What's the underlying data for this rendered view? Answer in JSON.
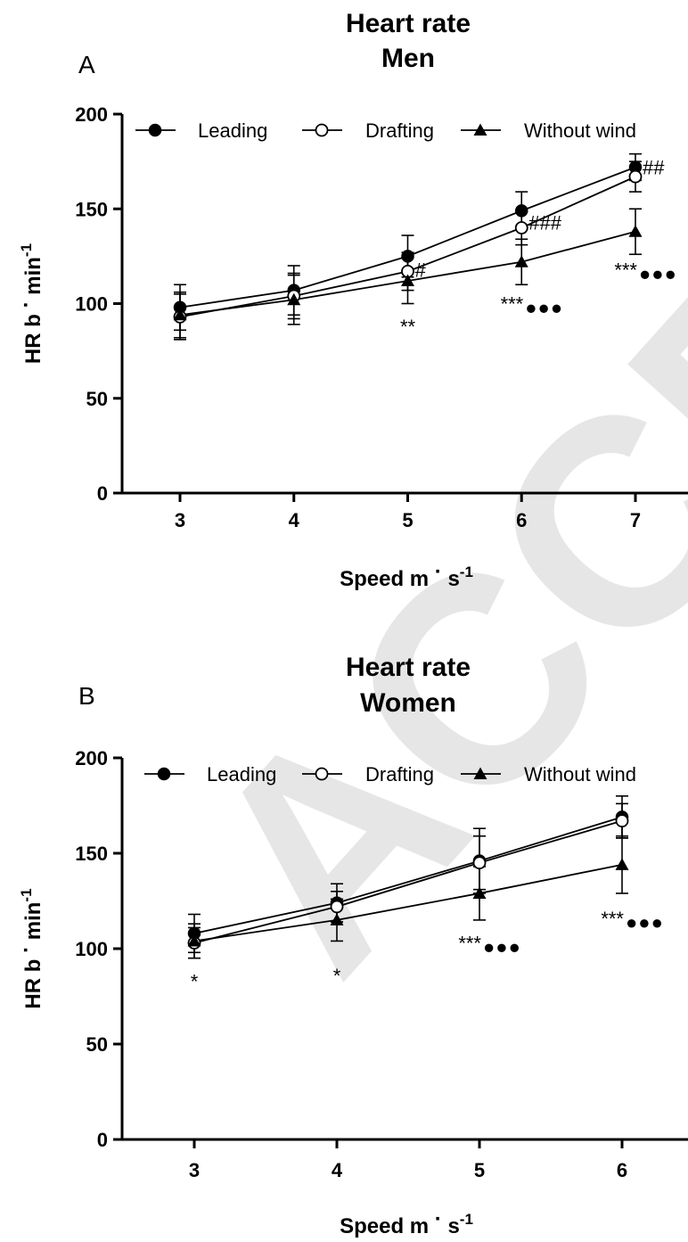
{
  "watermark": "ACCEPTED",
  "chart_data": [
    {
      "type": "line",
      "panel_label": "A",
      "title": "Heart rate",
      "subtitle": "Men",
      "xlabel": "Speed m",
      "xlabel_sup": "-1",
      "xlabel_mid": "s",
      "ylabel": "HR  b",
      "ylabel_mid": "min",
      "ylabel_sup": "-1",
      "x": [
        3,
        4,
        5,
        6,
        7
      ],
      "xticks": [
        "3",
        "4",
        "5",
        "6",
        "7"
      ],
      "ylim": [
        0,
        200
      ],
      "yticks": [
        "0",
        "50",
        "100",
        "150",
        "200"
      ],
      "legend_position": "top",
      "series": [
        {
          "name": "Leading",
          "marker": "filled-circle",
          "values": [
            98,
            107,
            125,
            149,
            172
          ],
          "err": [
            12,
            13,
            11,
            10,
            7
          ]
        },
        {
          "name": "Drafting",
          "marker": "open-circle",
          "values": [
            93,
            104,
            117,
            140,
            167
          ],
          "err": [
            12,
            12,
            10,
            9,
            8
          ]
        },
        {
          "name": "Without wind",
          "marker": "filled-triangle",
          "values": [
            94,
            102,
            112,
            122,
            138
          ],
          "err": [
            12,
            13,
            12,
            12,
            12
          ]
        }
      ],
      "annotations": [
        {
          "text": "**",
          "x": 5,
          "y": 88,
          "series": 2
        },
        {
          "text": "***",
          "dots": "●●●",
          "x": 6,
          "y": 100,
          "series": 2
        },
        {
          "text": "***",
          "dots": "●●●",
          "x": 7,
          "y": 118,
          "series": 2
        },
        {
          "text": "#",
          "x": 5,
          "y": 117,
          "series": 1
        },
        {
          "text": "###",
          "x": 6,
          "y": 142,
          "series": 1
        },
        {
          "text": "##",
          "x": 7,
          "y": 171,
          "series": 1
        }
      ]
    },
    {
      "type": "line",
      "panel_label": "B",
      "title": "Heart rate",
      "subtitle": "Women",
      "xlabel": "Speed m",
      "xlabel_sup": "-1",
      "xlabel_mid": "s",
      "ylabel": "HR  b",
      "ylabel_mid": "min",
      "ylabel_sup": "-1",
      "x": [
        3,
        4,
        5,
        6
      ],
      "xticks": [
        "3",
        "4",
        "5",
        "6"
      ],
      "ylim": [
        0,
        200
      ],
      "yticks": [
        "0",
        "50",
        "100",
        "150",
        "200"
      ],
      "legend_position": "top",
      "series": [
        {
          "name": "Leading",
          "marker": "filled-circle",
          "values": [
            108,
            124,
            146,
            169
          ],
          "err": [
            10,
            10,
            17,
            11
          ]
        },
        {
          "name": "Drafting",
          "marker": "open-circle",
          "values": [
            103,
            122,
            145,
            167
          ],
          "err": [
            8,
            8,
            14,
            9
          ]
        },
        {
          "name": "Without wind",
          "marker": "filled-triangle",
          "values": [
            104,
            115,
            129,
            144
          ],
          "err": [
            9,
            11,
            14,
            15
          ]
        }
      ],
      "annotations": [
        {
          "text": "*",
          "x": 3,
          "y": 83,
          "series": 2
        },
        {
          "text": "*",
          "x": 4,
          "y": 86,
          "series": 2
        },
        {
          "text": "***",
          "dots": "●●●",
          "x": 5,
          "y": 103,
          "series": 2
        },
        {
          "text": "***",
          "dots": "●●●",
          "x": 6,
          "y": 116,
          "series": 2
        }
      ]
    }
  ]
}
